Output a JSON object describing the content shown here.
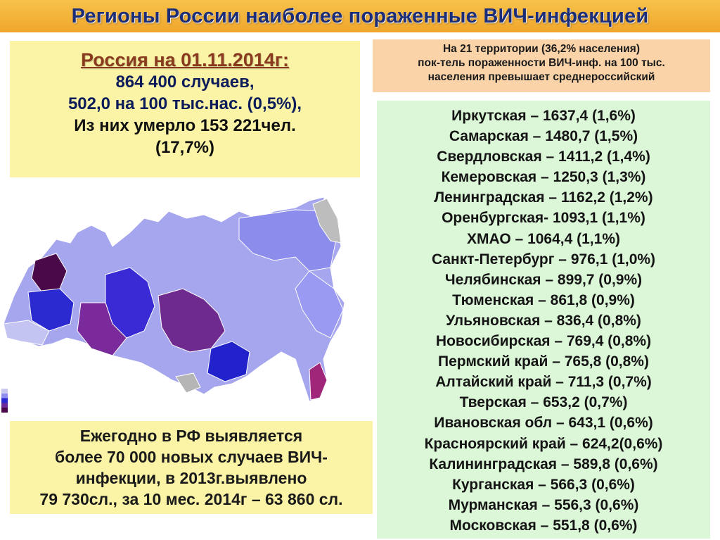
{
  "title": "Регионы России наиболее пораженные ВИЧ-инфекцией",
  "stats": {
    "headline": "Россия на 01.11.2014г:",
    "cases": "864 400 случаев,",
    "rate": "502,0 на 100 тыс.нас. (0,5%),",
    "deaths": "Из них умерло 153 221чел.",
    "deaths_pct": "(17,7%)"
  },
  "info": {
    "line1": "На 21 территории (36,2% населения)",
    "line2": "пок-тель пораженности ВИЧ-инф. на 100 тыс.",
    "line3": "населения превышает среднероссийский"
  },
  "regions": [
    "Иркутская – 1637,4 (1,6%)",
    "Самарская – 1480,7 (1,5%)",
    "Свердловская – 1411,2 (1,4%)",
    "Кемеровская – 1250,3 (1,3%)",
    "Ленинградская – 1162,2 (1,2%)",
    "Оренбургская- 1093,1 (1,1%)",
    "ХМАО – 1064,4 (1,1%)",
    "Санкт-Петербург – 976,1 (1,0%)",
    "Челябинская – 899,7 (0,9%)",
    "Тюменская – 861,8 (0,9%)",
    "Ульяновская – 836,4 (0,8%)",
    "Новосибирская – 769,4 (0,8%)",
    "Пермский край – 765,8 (0,8%)",
    "Алтайский край – 711,3 (0,7%)",
    "Тверская – 653,2 (0,7%)",
    "Ивановская обл – 643,1 (0,6%)",
    "Красноярский край – 624,2(0,6%)",
    "Калининградская – 589,8 (0,6%)",
    "Курганская – 566,3 (0,6%)",
    "Мурманская – 556,3 (0,6%)",
    "Московская – 551,8 (0,6%)"
  ],
  "bottom": {
    "line1": "Ежегодно в РФ  выявляется",
    "line2": "более 70 000 новых случаев ВИЧ-",
    "line3": "инфекции, в 2013г.выявлено",
    "line4": "79 730сл., за 10 мес. 2014г – 63 860 сл."
  },
  "colors": {
    "title_bar": "#f0a62c",
    "title_text": "#1c2d78",
    "stats_bg": "#fbf4a6",
    "info_bg": "#fbd3a8",
    "list_bg": "#dcf6d8",
    "map_light": "#9a9af0",
    "map_blue": "#2a2ad0",
    "map_purple": "#7a2a9a"
  }
}
